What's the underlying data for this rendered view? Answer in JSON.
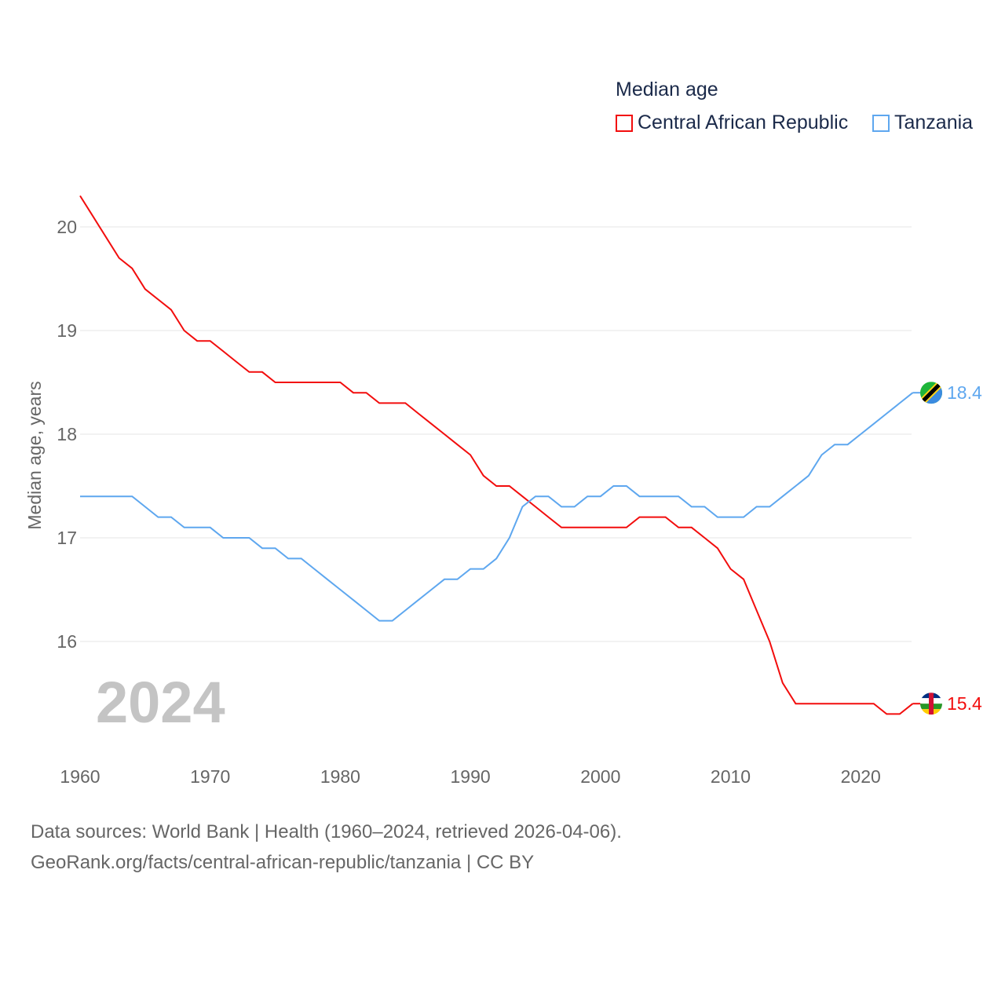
{
  "chart_data": {
    "type": "line",
    "title": "Median age",
    "xlabel": "",
    "ylabel": "Median age, years",
    "xlim": [
      1960,
      2024
    ],
    "ylim": [
      15.0,
      20.5
    ],
    "x_ticks": [
      1960,
      1970,
      1980,
      1990,
      2000,
      2010,
      2020
    ],
    "y_ticks": [
      16,
      17,
      18,
      19,
      20
    ],
    "grid": true,
    "legend_position": "top-right",
    "year_label": "2024",
    "x": [
      1960,
      1961,
      1962,
      1963,
      1964,
      1965,
      1966,
      1967,
      1968,
      1969,
      1970,
      1971,
      1972,
      1973,
      1974,
      1975,
      1976,
      1977,
      1978,
      1979,
      1980,
      1981,
      1982,
      1983,
      1984,
      1985,
      1986,
      1987,
      1988,
      1989,
      1990,
      1991,
      1992,
      1993,
      1994,
      1995,
      1996,
      1997,
      1998,
      1999,
      2000,
      2001,
      2002,
      2003,
      2004,
      2005,
      2006,
      2007,
      2008,
      2009,
      2010,
      2011,
      2012,
      2013,
      2014,
      2015,
      2016,
      2017,
      2018,
      2019,
      2020,
      2021,
      2022,
      2023,
      2024
    ],
    "series": [
      {
        "name": "Central African Republic",
        "color": "#f20d0d",
        "end_label": "15.4",
        "values": [
          20.3,
          20.1,
          19.9,
          19.7,
          19.6,
          19.4,
          19.3,
          19.2,
          19.0,
          18.9,
          18.9,
          18.8,
          18.7,
          18.6,
          18.6,
          18.5,
          18.5,
          18.5,
          18.5,
          18.5,
          18.5,
          18.4,
          18.4,
          18.3,
          18.3,
          18.3,
          18.2,
          18.1,
          18.0,
          17.9,
          17.8,
          17.6,
          17.5,
          17.5,
          17.4,
          17.3,
          17.2,
          17.1,
          17.1,
          17.1,
          17.1,
          17.1,
          17.1,
          17.2,
          17.2,
          17.2,
          17.1,
          17.1,
          17.0,
          16.9,
          16.7,
          16.6,
          16.3,
          16.0,
          15.6,
          15.4,
          15.4,
          15.4,
          15.4,
          15.4,
          15.4,
          15.4,
          15.3,
          15.3,
          15.4
        ]
      },
      {
        "name": "Tanzania",
        "color": "#5ea7ef",
        "end_label": "18.4",
        "values": [
          17.4,
          17.4,
          17.4,
          17.4,
          17.4,
          17.3,
          17.2,
          17.2,
          17.1,
          17.1,
          17.1,
          17.0,
          17.0,
          17.0,
          16.9,
          16.9,
          16.8,
          16.8,
          16.7,
          16.6,
          16.5,
          16.4,
          16.3,
          16.2,
          16.2,
          16.3,
          16.4,
          16.5,
          16.6,
          16.6,
          16.7,
          16.7,
          16.8,
          17.0,
          17.3,
          17.4,
          17.4,
          17.3,
          17.3,
          17.4,
          17.4,
          17.5,
          17.5,
          17.4,
          17.4,
          17.4,
          17.4,
          17.3,
          17.3,
          17.2,
          17.2,
          17.2,
          17.3,
          17.3,
          17.4,
          17.5,
          17.6,
          17.8,
          17.9,
          17.9,
          18.0,
          18.1,
          18.2,
          18.3,
          18.4
        ]
      }
    ]
  },
  "sources": {
    "line1": "Data sources: World Bank | Health (1960–2024, retrieved 2026-04-06).",
    "line2": "GeoRank.org/facts/central-african-republic/tanzania | CC BY"
  }
}
